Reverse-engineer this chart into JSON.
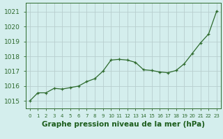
{
  "x": [
    0,
    1,
    2,
    3,
    4,
    5,
    6,
    7,
    8,
    9,
    10,
    11,
    12,
    13,
    14,
    15,
    16,
    17,
    18,
    19,
    20,
    21,
    22,
    23
  ],
  "y": [
    1015.0,
    1015.55,
    1015.55,
    1015.85,
    1015.8,
    1015.9,
    1016.0,
    1016.3,
    1016.5,
    1017.0,
    1017.75,
    1017.8,
    1017.75,
    1017.6,
    1017.1,
    1017.05,
    1016.95,
    1016.9,
    1017.05,
    1017.5,
    1018.2,
    1018.9,
    1019.5,
    1021.05
  ],
  "line_color": "#2d6a2d",
  "marker_color": "#2d6a2d",
  "bg_color": "#d4eeed",
  "grid_color": "#b8cece",
  "title": "Graphe pression niveau de la mer (hPa)",
  "title_color": "#1a5c1a",
  "title_fontsize": 7.5,
  "ylabel_ticks": [
    1015,
    1016,
    1017,
    1018,
    1019,
    1020,
    1021
  ],
  "xlim": [
    -0.5,
    23.5
  ],
  "ylim": [
    1014.5,
    1021.6
  ],
  "tick_color": "#2d6a2d",
  "outer_bg": "#d4eeed",
  "ytick_fontsize": 6.5,
  "xtick_fontsize": 5.0
}
